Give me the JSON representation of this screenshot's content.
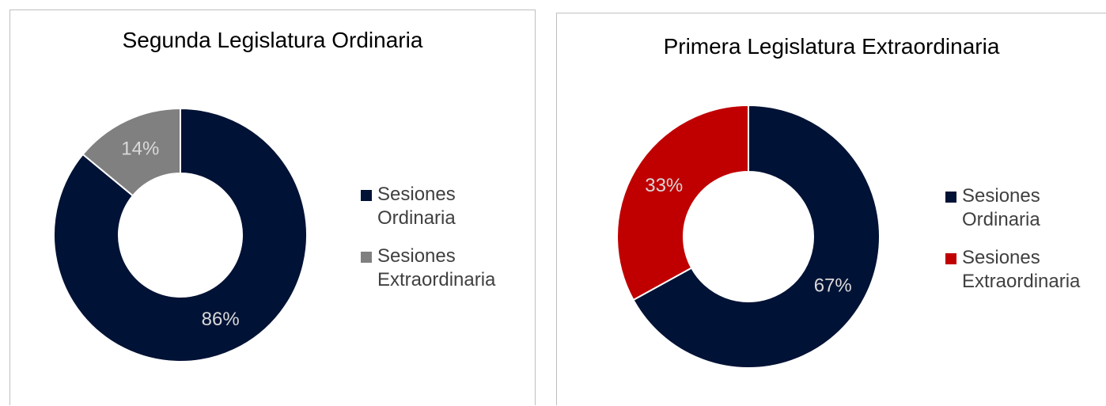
{
  "chart_data": [
    {
      "type": "pie",
      "donut": true,
      "title": "Segunda Legislatura Ordinaria",
      "categories": [
        "Sesiones Ordinaria",
        "Sesiones Extraordinaria"
      ],
      "values": [
        86,
        14
      ],
      "value_labels": [
        "86%",
        "14%"
      ],
      "colors": [
        "#001235",
        "#808080"
      ]
    },
    {
      "type": "pie",
      "donut": true,
      "title": "Primera Legislatura Extraordinaria",
      "categories": [
        "Sesiones Ordinaria",
        "Sesiones Extraordinaria"
      ],
      "values": [
        67,
        33
      ],
      "value_labels": [
        "67%",
        "33%"
      ],
      "colors": [
        "#001235",
        "#c00000"
      ]
    }
  ]
}
